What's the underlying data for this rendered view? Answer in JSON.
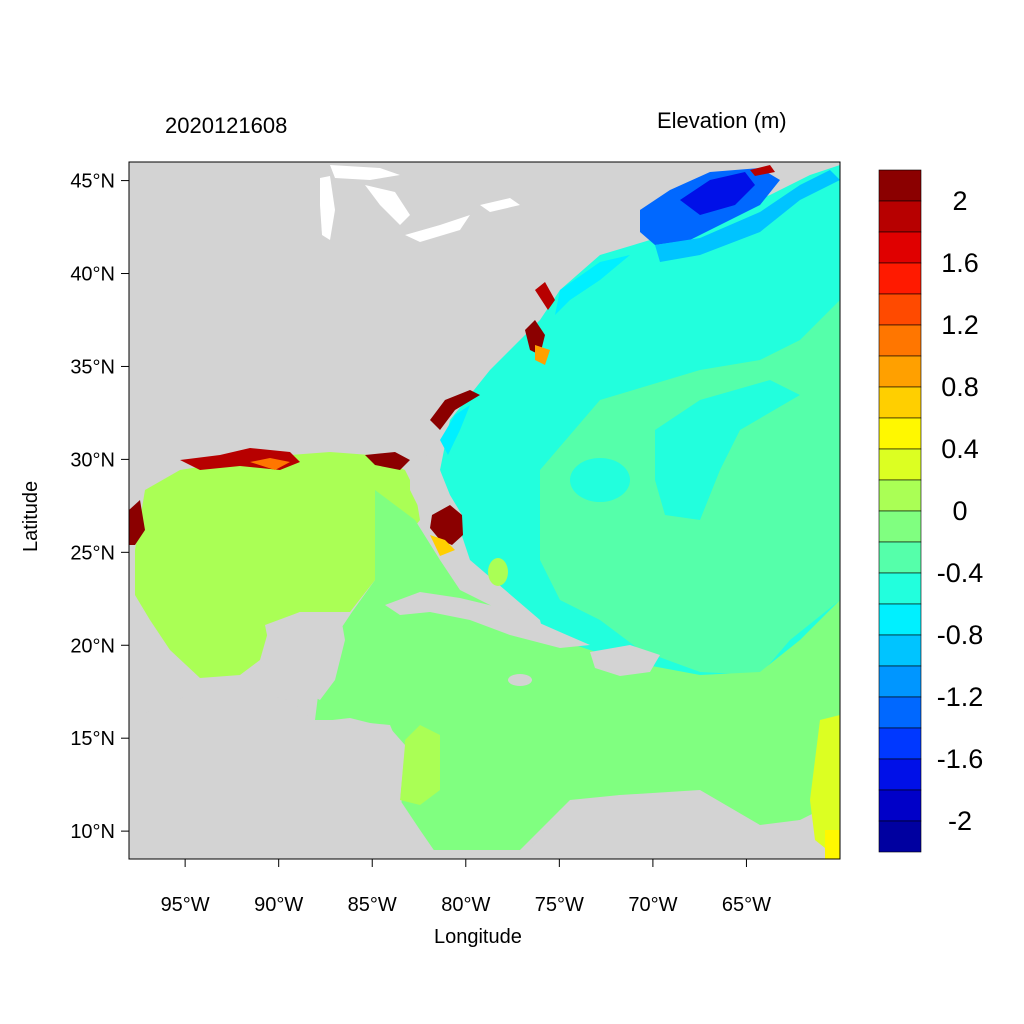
{
  "title_left": "2020121608",
  "title_right": "Elevation (m)",
  "xlabel": "Longitude",
  "ylabel": "Latitude",
  "lon_range": [
    -98,
    -60
  ],
  "lat_range": [
    8.5,
    46
  ],
  "lon_ticks": [
    "95°W",
    "90°W",
    "85°W",
    "80°W",
    "75°W",
    "70°W",
    "65°W"
  ],
  "lon_tick_values": [
    -95,
    -90,
    -85,
    -80,
    -75,
    -70,
    -65
  ],
  "lat_ticks": [
    "45°N",
    "40°N",
    "35°N",
    "30°N",
    "25°N",
    "20°N",
    "15°N",
    "10°N"
  ],
  "lat_tick_values": [
    45,
    40,
    35,
    30,
    25,
    20,
    15,
    10
  ],
  "colorbar": {
    "labels": [
      "2",
      "1.6",
      "1.2",
      "0.8",
      "0.4",
      "0",
      "-0.4",
      "-0.8",
      "-1.2",
      "-1.6",
      "-2"
    ],
    "colors_top_to_bottom": [
      "#8b0000",
      "#b70000",
      "#e00000",
      "#ff1a00",
      "#ff4a00",
      "#ff7600",
      "#ffa000",
      "#ffcf00",
      "#fff800",
      "#dcff22",
      "#aaff55",
      "#80ff80",
      "#55ffaa",
      "#22ffdd",
      "#00f0ff",
      "#00c4ff",
      "#0096ff",
      "#0068ff",
      "#0038ff",
      "#0010e8",
      "#0000c8",
      "#0000a0"
    ]
  },
  "colors": {
    "land": "#d3d3d3",
    "lakes": "#ffffff"
  }
}
